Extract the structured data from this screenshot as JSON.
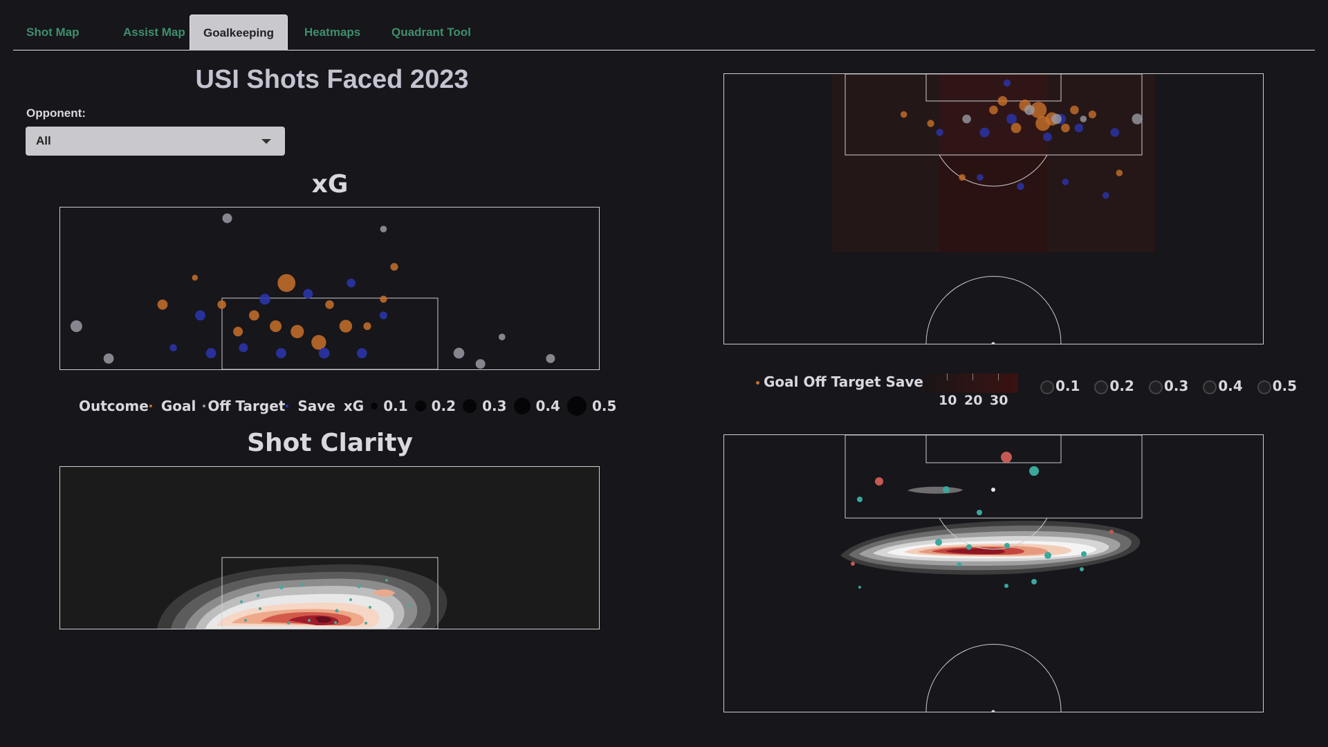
{
  "tabs": [
    {
      "label": "Shot Map"
    },
    {
      "label": "Assist Map"
    },
    {
      "label": "Goalkeeping"
    },
    {
      "label": "Heatmaps"
    },
    {
      "label": "Quadrant Tool"
    }
  ],
  "active_tab": "Goalkeeping",
  "page_title": "USI Shots Faced 2023",
  "opponent": {
    "label": "Opponent:",
    "value": "All"
  },
  "xg_section": {
    "title": "xG"
  },
  "clarity_section": {
    "title": "Shot Clarity"
  },
  "legend": {
    "outcome_label": "Outcome",
    "outcomes": [
      "Goal",
      "Off Target",
      "Save"
    ],
    "xg_label": "xG",
    "sizes": [
      "0.1",
      "0.2",
      "0.3",
      "0.4",
      "0.5"
    ]
  },
  "right_legend": {
    "outcomes_text": "Goal Off Target Save",
    "colorbar_ticks": [
      "10",
      "20",
      "30"
    ],
    "sizes": [
      "0.1",
      "0.2",
      "0.3",
      "0.4",
      "0.5"
    ]
  },
  "colors": {
    "goal": "#c8702a",
    "off_target": "#9a9aa2",
    "save": "#2b36b0",
    "clarity_dot": "#4aa8a0",
    "tab_text": "#3f8f6c",
    "background": "#16161b"
  },
  "chart_data": [
    {
      "type": "scatter",
      "name": "xG goal-mouth view",
      "title": "xG",
      "points": [
        {
          "x": 42,
          "y": 16,
          "xg": 0.45,
          "outcome": "Goal"
        },
        {
          "x": 36,
          "y": 10,
          "xg": 0.2,
          "outcome": "Goal"
        },
        {
          "x": 44,
          "y": 7,
          "xg": 0.3,
          "outcome": "Goal"
        },
        {
          "x": 40,
          "y": 8,
          "xg": 0.25,
          "outcome": "Goal"
        },
        {
          "x": 53,
          "y": 8,
          "xg": 0.28,
          "outcome": "Goal"
        },
        {
          "x": 30,
          "y": 12,
          "xg": 0.15,
          "outcome": "Goal"
        },
        {
          "x": 33,
          "y": 7,
          "xg": 0.18,
          "outcome": "Goal"
        },
        {
          "x": 57,
          "y": 8,
          "xg": 0.12,
          "outcome": "Goal"
        },
        {
          "x": 62,
          "y": 19,
          "xg": 0.12,
          "outcome": "Goal"
        },
        {
          "x": 48,
          "y": 5,
          "xg": 0.35,
          "outcome": "Goal"
        },
        {
          "x": 25,
          "y": 17,
          "xg": 0.06,
          "outcome": "Goal"
        },
        {
          "x": 19,
          "y": 12,
          "xg": 0.2,
          "outcome": "Goal"
        },
        {
          "x": 50,
          "y": 12,
          "xg": 0.15,
          "outcome": "Goal"
        },
        {
          "x": 60,
          "y": 13,
          "xg": 0.1,
          "outcome": "Goal"
        },
        {
          "x": 21,
          "y": 4,
          "xg": 0.1,
          "outcome": "Save"
        },
        {
          "x": 26,
          "y": 10,
          "xg": 0.2,
          "outcome": "Save"
        },
        {
          "x": 38,
          "y": 13,
          "xg": 0.22,
          "outcome": "Save"
        },
        {
          "x": 46,
          "y": 14,
          "xg": 0.18,
          "outcome": "Save"
        },
        {
          "x": 54,
          "y": 16,
          "xg": 0.15,
          "outcome": "Save"
        },
        {
          "x": 60,
          "y": 10,
          "xg": 0.12,
          "outcome": "Save"
        },
        {
          "x": 49,
          "y": 3,
          "xg": 0.22,
          "outcome": "Save"
        },
        {
          "x": 28,
          "y": 3,
          "xg": 0.2,
          "outcome": "Save"
        },
        {
          "x": 56,
          "y": 3,
          "xg": 0.2,
          "outcome": "Save"
        },
        {
          "x": 41,
          "y": 3,
          "xg": 0.2,
          "outcome": "Save"
        },
        {
          "x": 34,
          "y": 4,
          "xg": 0.16,
          "outcome": "Save"
        },
        {
          "x": 3,
          "y": 8,
          "xg": 0.25,
          "outcome": "Off Target"
        },
        {
          "x": 9,
          "y": 2,
          "xg": 0.2,
          "outcome": "Off Target"
        },
        {
          "x": 74,
          "y": 3,
          "xg": 0.22,
          "outcome": "Off Target"
        },
        {
          "x": 78,
          "y": 1,
          "xg": 0.18,
          "outcome": "Off Target"
        },
        {
          "x": 82,
          "y": 6,
          "xg": 0.08,
          "outcome": "Off Target"
        },
        {
          "x": 91,
          "y": 2,
          "xg": 0.16,
          "outcome": "Off Target"
        },
        {
          "x": 31,
          "y": 28,
          "xg": 0.18,
          "outcome": "Off Target"
        },
        {
          "x": 60,
          "y": 26,
          "xg": 0.08,
          "outcome": "Off Target"
        }
      ]
    },
    {
      "type": "heatmap",
      "name": "Shot Clarity goal-mouth view",
      "title": "Shot Clarity"
    },
    {
      "type": "scatter",
      "name": "Shots faced pitch map",
      "points": [
        {
          "x": 70,
          "y": 112,
          "xg": 0.4,
          "outcome": "Goal"
        },
        {
          "x": 67,
          "y": 113,
          "xg": 0.25,
          "outcome": "Goal"
        },
        {
          "x": 73,
          "y": 110,
          "xg": 0.3,
          "outcome": "Goal"
        },
        {
          "x": 65,
          "y": 108,
          "xg": 0.2,
          "outcome": "Goal"
        },
        {
          "x": 71,
          "y": 109,
          "xg": 0.35,
          "outcome": "Goal"
        },
        {
          "x": 60,
          "y": 112,
          "xg": 0.15,
          "outcome": "Goal"
        },
        {
          "x": 62,
          "y": 114,
          "xg": 0.18,
          "outcome": "Goal"
        },
        {
          "x": 78,
          "y": 112,
          "xg": 0.15,
          "outcome": "Goal"
        },
        {
          "x": 82,
          "y": 111,
          "xg": 0.12,
          "outcome": "Goal"
        },
        {
          "x": 76,
          "y": 108,
          "xg": 0.15,
          "outcome": "Goal"
        },
        {
          "x": 40,
          "y": 111,
          "xg": 0.08,
          "outcome": "Goal"
        },
        {
          "x": 46,
          "y": 109,
          "xg": 0.1,
          "outcome": "Goal"
        },
        {
          "x": 88,
          "y": 98,
          "xg": 0.08,
          "outcome": "Goal"
        },
        {
          "x": 53,
          "y": 97,
          "xg": 0.08,
          "outcome": "Goal"
        },
        {
          "x": 64,
          "y": 110,
          "xg": 0.2,
          "outcome": "Save"
        },
        {
          "x": 58,
          "y": 107,
          "xg": 0.18,
          "outcome": "Save"
        },
        {
          "x": 75,
          "y": 110,
          "xg": 0.2,
          "outcome": "Save"
        },
        {
          "x": 79,
          "y": 108,
          "xg": 0.15,
          "outcome": "Save"
        },
        {
          "x": 87,
          "y": 107,
          "xg": 0.15,
          "outcome": "Save"
        },
        {
          "x": 48,
          "y": 107,
          "xg": 0.1,
          "outcome": "Save"
        },
        {
          "x": 72,
          "y": 106,
          "xg": 0.15,
          "outcome": "Save"
        },
        {
          "x": 66,
          "y": 95,
          "xg": 0.1,
          "outcome": "Save"
        },
        {
          "x": 57,
          "y": 97,
          "xg": 0.08,
          "outcome": "Save"
        },
        {
          "x": 76,
          "y": 96,
          "xg": 0.08,
          "outcome": "Save"
        },
        {
          "x": 85,
          "y": 93,
          "xg": 0.08,
          "outcome": "Save"
        },
        {
          "x": 63,
          "y": 118,
          "xg": 0.1,
          "outcome": "Save"
        },
        {
          "x": 68,
          "y": 112,
          "xg": 0.2,
          "outcome": "Off Target"
        },
        {
          "x": 54,
          "y": 110,
          "xg": 0.15,
          "outcome": "Off Target"
        },
        {
          "x": 74,
          "y": 110,
          "xg": 0.2,
          "outcome": "Off Target"
        },
        {
          "x": 92,
          "y": 110,
          "xg": 0.22,
          "outcome": "Off Target"
        },
        {
          "x": 80,
          "y": 110,
          "xg": 0.08,
          "outcome": "Off Target"
        }
      ]
    },
    {
      "type": "heatmap",
      "name": "Shot clarity pitch map"
    }
  ]
}
